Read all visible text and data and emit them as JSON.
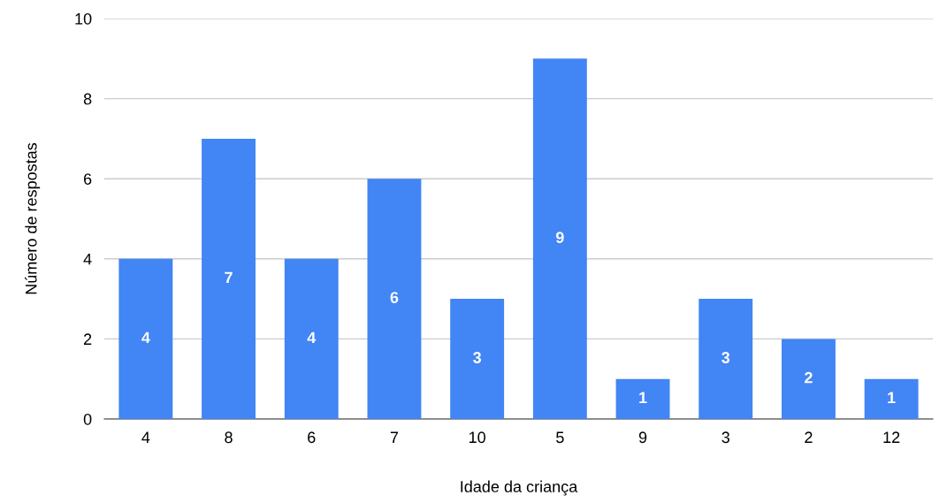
{
  "chart_data": {
    "type": "bar",
    "xlabel": "Idade da criança",
    "ylabel": "Número de respostas",
    "categories": [
      "4",
      "8",
      "6",
      "7",
      "10",
      "5",
      "9",
      "3",
      "2",
      "12"
    ],
    "values": [
      4,
      7,
      4,
      6,
      3,
      9,
      1,
      3,
      2,
      1
    ],
    "color": "#4285f4",
    "ylim": [
      0,
      10
    ],
    "yticks": [
      0,
      2,
      4,
      6,
      8,
      10
    ],
    "grid": "y",
    "data_labels": true
  }
}
